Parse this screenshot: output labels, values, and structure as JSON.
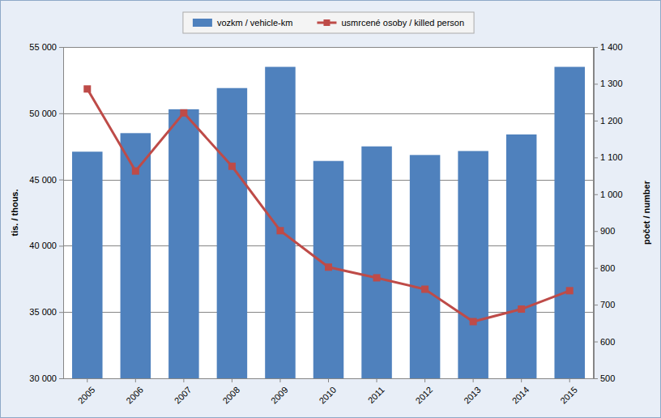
{
  "chart_data": {
    "type": "bar",
    "categories": [
      "2005",
      "2006",
      "2007",
      "2008",
      "2009",
      "2010",
      "2011",
      "2012",
      "2013",
      "2014",
      "2015"
    ],
    "series": [
      {
        "name": "vozkm / vehicle-km",
        "type": "bar",
        "color": "#4f81bd",
        "values": [
          47100,
          48500,
          50300,
          51900,
          53500,
          46400,
          47500,
          46850,
          47150,
          48400,
          53500
        ]
      },
      {
        "name": "usmrcené osoby / killed person",
        "type": "line",
        "color": "#be4b48",
        "marker": "square",
        "axis": "y2",
        "values": [
          1286,
          1063,
          1221,
          1076,
          901,
          802,
          773,
          742,
          654,
          688,
          738
        ]
      }
    ],
    "ylabel": "tis. / thous.",
    "y2label": "počet / number",
    "ylim": [
      30000,
      55000
    ],
    "yticks": [
      {
        "value": 30000,
        "label": "30 000"
      },
      {
        "value": 35000,
        "label": "35 000"
      },
      {
        "value": 40000,
        "label": "40 000"
      },
      {
        "value": 45000,
        "label": "45 000"
      },
      {
        "value": 50000,
        "label": "50 000"
      },
      {
        "value": 55000,
        "label": "55 000"
      }
    ],
    "y2lim": [
      500,
      1400
    ],
    "y2ticks": [
      500,
      600,
      700,
      800,
      900,
      {
        "value": 1000,
        "label": "1 000"
      },
      {
        "value": 1100,
        "label": "1 100"
      },
      {
        "value": 1200,
        "label": "1 200"
      },
      {
        "value": 1300,
        "label": "1 300"
      },
      {
        "value": 1400,
        "label": "1 400"
      }
    ],
    "grid": true,
    "legend": "top"
  }
}
